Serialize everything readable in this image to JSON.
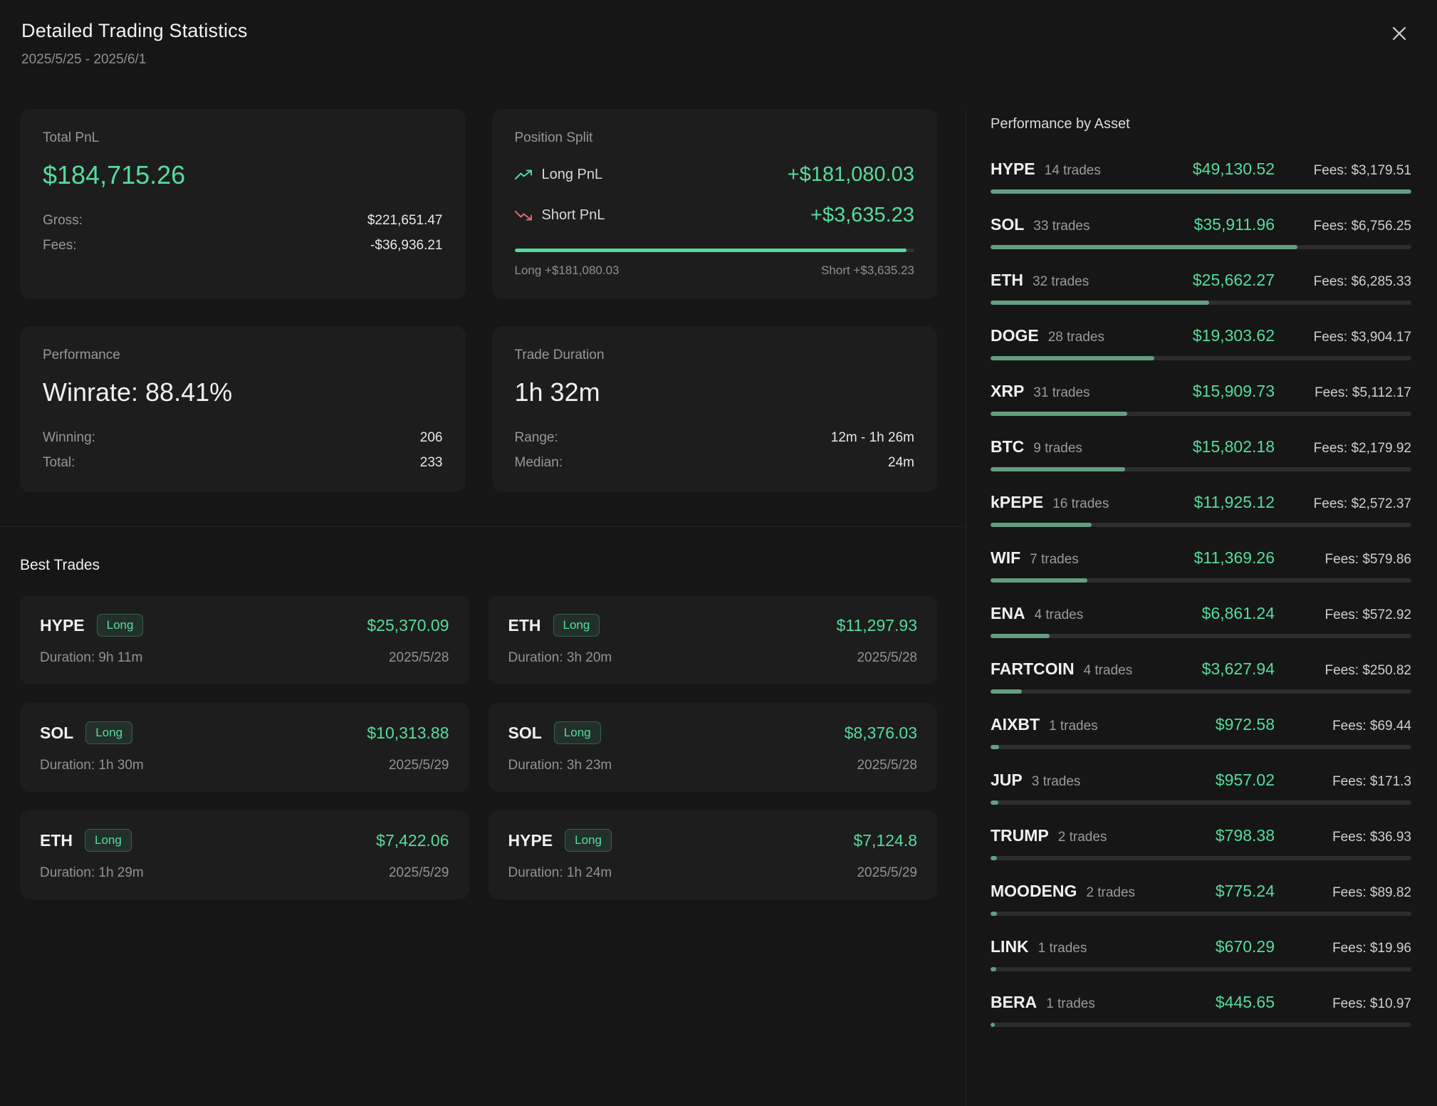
{
  "header": {
    "title": "Detailed Trading Statistics",
    "date_range": "2025/5/25 - 2025/6/1"
  },
  "colors": {
    "accent_green": "#56dc9b",
    "negative_red": "#e06c6c",
    "bar_green_muted": "#649e80",
    "card_background": "#1d1d1d",
    "page_background": "#161616"
  },
  "total_pnl": {
    "label": "Total PnL",
    "value": "$184,715.26",
    "gross_label": "Gross:",
    "gross_value": "$221,651.47",
    "fees_label": "Fees:",
    "fees_value": "-$36,936.21"
  },
  "position_split": {
    "label": "Position Split",
    "long_label": "Long PnL",
    "long_value": "+$181,080.03",
    "short_label": "Short PnL",
    "short_value": "+$3,635.23",
    "long_bar_pct": 98,
    "footer_long": "Long +$181,080.03",
    "footer_short": "Short +$3,635.23"
  },
  "performance": {
    "label": "Performance",
    "value": "Winrate: 88.41%",
    "winning_label": "Winning:",
    "winning_value": "206",
    "total_label": "Total:",
    "total_value": "233"
  },
  "trade_duration": {
    "label": "Trade Duration",
    "value": "1h 32m",
    "range_label": "Range:",
    "range_value": "12m - 1h 26m",
    "median_label": "Median:",
    "median_value": "24m"
  },
  "best_trades": {
    "title": "Best Trades",
    "items": [
      {
        "asset": "HYPE",
        "side": "Long",
        "pnl": "$25,370.09",
        "duration": "Duration: 9h 11m",
        "date": "2025/5/28"
      },
      {
        "asset": "ETH",
        "side": "Long",
        "pnl": "$11,297.93",
        "duration": "Duration: 3h 20m",
        "date": "2025/5/28"
      },
      {
        "asset": "SOL",
        "side": "Long",
        "pnl": "$10,313.88",
        "duration": "Duration: 1h 30m",
        "date": "2025/5/29"
      },
      {
        "asset": "SOL",
        "side": "Long",
        "pnl": "$8,376.03",
        "duration": "Duration: 3h 23m",
        "date": "2025/5/28"
      },
      {
        "asset": "ETH",
        "side": "Long",
        "pnl": "$7,422.06",
        "duration": "Duration: 1h 29m",
        "date": "2025/5/29"
      },
      {
        "asset": "HYPE",
        "side": "Long",
        "pnl": "$7,124.8",
        "duration": "Duration: 1h 24m",
        "date": "2025/5/29"
      }
    ]
  },
  "performance_by_asset": {
    "title": "Performance by Asset",
    "items": [
      {
        "asset": "HYPE",
        "trades": "14 trades",
        "pnl": "$49,130.52",
        "fees": "Fees: $3,179.51",
        "bar_pct": 100
      },
      {
        "asset": "SOL",
        "trades": "33 trades",
        "pnl": "$35,911.96",
        "fees": "Fees: $6,756.25",
        "bar_pct": 73
      },
      {
        "asset": "ETH",
        "trades": "32 trades",
        "pnl": "$25,662.27",
        "fees": "Fees: $6,285.33",
        "bar_pct": 52
      },
      {
        "asset": "DOGE",
        "trades": "28 trades",
        "pnl": "$19,303.62",
        "fees": "Fees: $3,904.17",
        "bar_pct": 39
      },
      {
        "asset": "XRP",
        "trades": "31 trades",
        "pnl": "$15,909.73",
        "fees": "Fees: $5,112.17",
        "bar_pct": 32.5
      },
      {
        "asset": "BTC",
        "trades": "9 trades",
        "pnl": "$15,802.18",
        "fees": "Fees: $2,179.92",
        "bar_pct": 32
      },
      {
        "asset": "kPEPE",
        "trades": "16 trades",
        "pnl": "$11,925.12",
        "fees": "Fees: $2,572.37",
        "bar_pct": 24
      },
      {
        "asset": "WIF",
        "trades": "7 trades",
        "pnl": "$11,369.26",
        "fees": "Fees: $579.86",
        "bar_pct": 23
      },
      {
        "asset": "ENA",
        "trades": "4 trades",
        "pnl": "$6,861.24",
        "fees": "Fees: $572.92",
        "bar_pct": 14
      },
      {
        "asset": "FARTCOIN",
        "trades": "4 trades",
        "pnl": "$3,627.94",
        "fees": "Fees: $250.82",
        "bar_pct": 7.4
      },
      {
        "asset": "AIXBT",
        "trades": "1 trades",
        "pnl": "$972.58",
        "fees": "Fees: $69.44",
        "bar_pct": 2
      },
      {
        "asset": "JUP",
        "trades": "3 trades",
        "pnl": "$957.02",
        "fees": "Fees: $171.3",
        "bar_pct": 1.9
      },
      {
        "asset": "TRUMP",
        "trades": "2 trades",
        "pnl": "$798.38",
        "fees": "Fees: $36.93",
        "bar_pct": 1.6
      },
      {
        "asset": "MOODENG",
        "trades": "2 trades",
        "pnl": "$775.24",
        "fees": "Fees: $89.82",
        "bar_pct": 1.6
      },
      {
        "asset": "LINK",
        "trades": "1 trades",
        "pnl": "$670.29",
        "fees": "Fees: $19.96",
        "bar_pct": 1.4
      },
      {
        "asset": "BERA",
        "trades": "1 trades",
        "pnl": "$445.65",
        "fees": "Fees: $10.97",
        "bar_pct": 0.9
      }
    ]
  }
}
